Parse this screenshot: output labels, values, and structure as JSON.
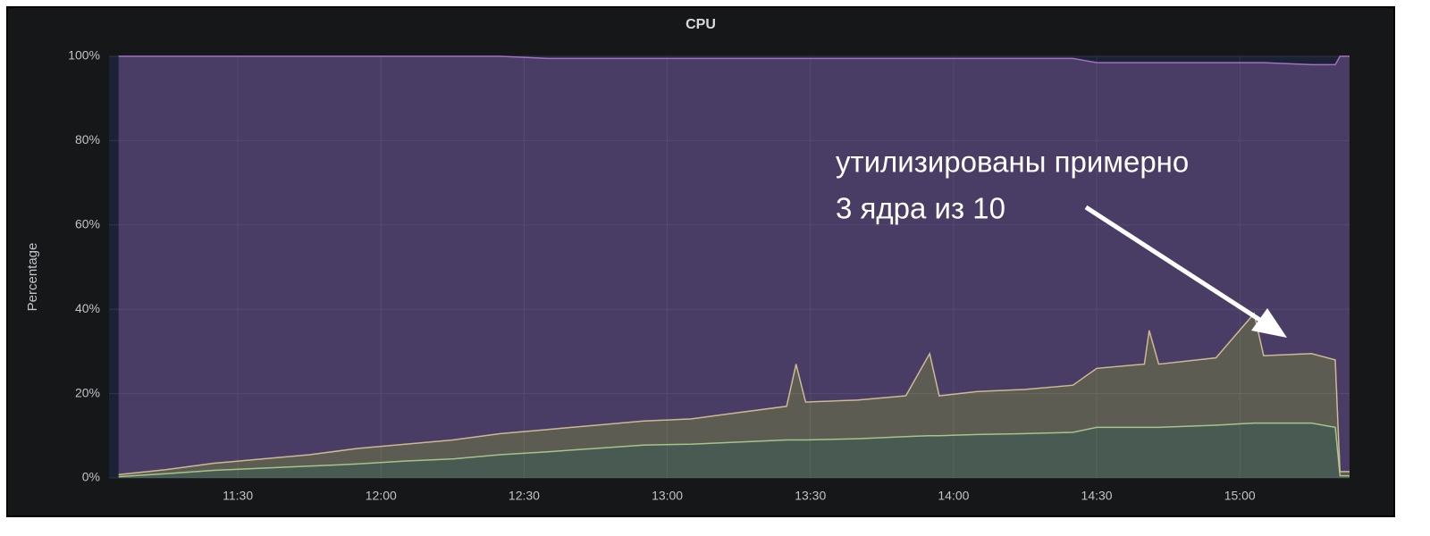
{
  "chart_data": {
    "type": "stacked-area",
    "title": "CPU",
    "ylabel": "Percentage",
    "annotation": [
      "утилизированы примерно",
      "3 ядра из 10"
    ],
    "x": [
      "11:05",
      "11:15",
      "11:25",
      "11:35",
      "11:45",
      "11:55",
      "12:05",
      "12:15",
      "12:25",
      "12:35",
      "12:45",
      "12:55",
      "13:05",
      "13:15",
      "13:25",
      "13:27",
      "13:29",
      "13:40",
      "13:50",
      "13:55",
      "13:57",
      "14:05",
      "14:15",
      "14:25",
      "14:30",
      "14:40",
      "14:41",
      "14:43",
      "14:55",
      "15:03",
      "15:05",
      "15:15",
      "15:20",
      "15:21",
      "15:23"
    ],
    "series": [
      {
        "color": "#9ac48a",
        "values": [
          0.3,
          1,
          1.8,
          2.3,
          2.8,
          3.3,
          4,
          4.5,
          5.5,
          6.2,
          7,
          7.8,
          8,
          8.5,
          9,
          9,
          9,
          9.3,
          9.8,
          10,
          10,
          10.3,
          10.5,
          10.8,
          12,
          12,
          12,
          12,
          12.5,
          13,
          13,
          13,
          12,
          0.5,
          0.5
        ]
      },
      {
        "color": "#d6c88a",
        "values": [
          0.5,
          1,
          1.7,
          2.2,
          2.7,
          3.7,
          4,
          4.5,
          5,
          5.3,
          5.5,
          5.7,
          6,
          7,
          8,
          18,
          9,
          9.2,
          9.7,
          19.5,
          9.5,
          10.2,
          10.5,
          11.2,
          14,
          15,
          23,
          15,
          16,
          26,
          16,
          16.5,
          16,
          1,
          1
        ]
      },
      {
        "color": "#a070c0",
        "values": [
          99.2,
          98,
          96.5,
          95.5,
          94.5,
          93,
          92,
          91,
          89.5,
          88,
          87,
          86,
          85.5,
          84,
          82.5,
          72.5,
          81.5,
          81,
          80,
          70,
          80,
          79,
          78.5,
          77.5,
          72.5,
          71.5,
          63.5,
          71.5,
          70,
          59.5,
          69.5,
          68.5,
          70,
          98.5,
          98.5
        ]
      }
    ],
    "xlim": [
      "11:03",
      "15:23"
    ],
    "xticks": [
      "11:30",
      "12:00",
      "12:30",
      "13:00",
      "13:30",
      "14:00",
      "14:30",
      "15:00"
    ],
    "ylim": [
      0,
      100
    ],
    "yticks": [
      {
        "value": 0,
        "label": "0%"
      },
      {
        "value": 20,
        "label": "20%"
      },
      {
        "value": 40,
        "label": "40%"
      },
      {
        "value": 60,
        "label": "60%"
      },
      {
        "value": 80,
        "label": "80%"
      },
      {
        "value": 100,
        "label": "100%"
      }
    ],
    "grid": true
  }
}
